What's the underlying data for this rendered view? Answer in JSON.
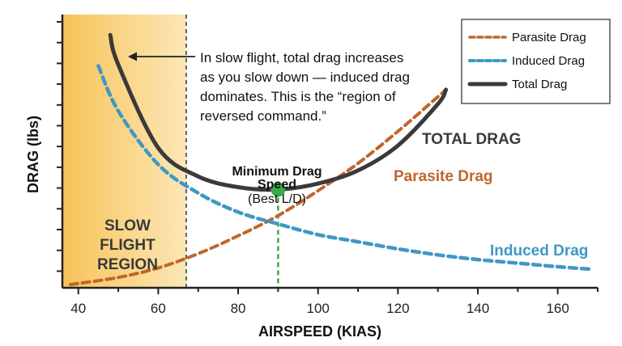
{
  "chart_data": {
    "type": "line",
    "xlabel": "AIRSPEED (KIAS)",
    "ylabel": "DRAG (lbs)",
    "xlim": [
      36,
      170
    ],
    "x_ticks": [
      40,
      60,
      80,
      100,
      120,
      140,
      160
    ],
    "y_axis_labels": "none",
    "colors": {
      "parasite": "#c0662a",
      "induced": "#3e98c6",
      "total": "#3a3a3a",
      "min_point": "#3aaa4a",
      "region_fill": "#f9c96b"
    },
    "series": [
      {
        "name": "Parasite Drag",
        "style": "dashed",
        "x": [
          38,
          50,
          60,
          70,
          80,
          90,
          100,
          110,
          120,
          130,
          132
        ],
        "y": [
          0.0,
          0.6,
          1.4,
          2.6,
          4.1,
          5.8,
          7.9,
          10.2,
          12.9,
          15.8,
          16.4
        ]
      },
      {
        "name": "Induced Drag",
        "style": "dashed",
        "x": [
          45,
          50,
          60,
          70,
          80,
          90,
          100,
          110,
          120,
          130,
          140,
          150,
          160,
          168
        ],
        "y": [
          18.4,
          14.6,
          10.1,
          7.7,
          6.1,
          5.1,
          4.2,
          3.6,
          3.0,
          2.5,
          2.1,
          1.8,
          1.5,
          1.3
        ]
      },
      {
        "name": "Total Drag",
        "style": "solid",
        "x": [
          48,
          50,
          60,
          70,
          80,
          90,
          100,
          110,
          120,
          130,
          132
        ],
        "y": [
          21.0,
          18.5,
          11.5,
          9.1,
          8.2,
          8.0,
          8.5,
          9.6,
          11.7,
          15.2,
          16.4
        ]
      }
    ],
    "regions": [
      {
        "label": "SLOW\nFLIGHT\nREGION",
        "x_start": 36,
        "x_end": 67
      }
    ],
    "markers": [
      {
        "label": "Minimum Drag Speed",
        "sublabel": "(Best L/D)",
        "x": 90,
        "y": 8.0
      }
    ],
    "annotations": {
      "slow_flight_note": [
        "In slow flight, total drag increases",
        "as you slow down — induced drag",
        "dominates. This is the “region of",
        "reversed command.”"
      ],
      "total_label": "TOTAL DRAG",
      "parasite_label": "Parasite Drag",
      "induced_label": "Induced Drag",
      "min_title_line1": "Minimum Drag",
      "min_title_line2": "Speed",
      "min_sub": "(Best L/D)",
      "region_lines": [
        "SLOW",
        "FLIGHT",
        "REGION"
      ]
    },
    "legend": {
      "position": "top-right",
      "items": [
        "Parasite Drag",
        "Induced Drag",
        "Total Drag"
      ]
    },
    "grid": false
  }
}
